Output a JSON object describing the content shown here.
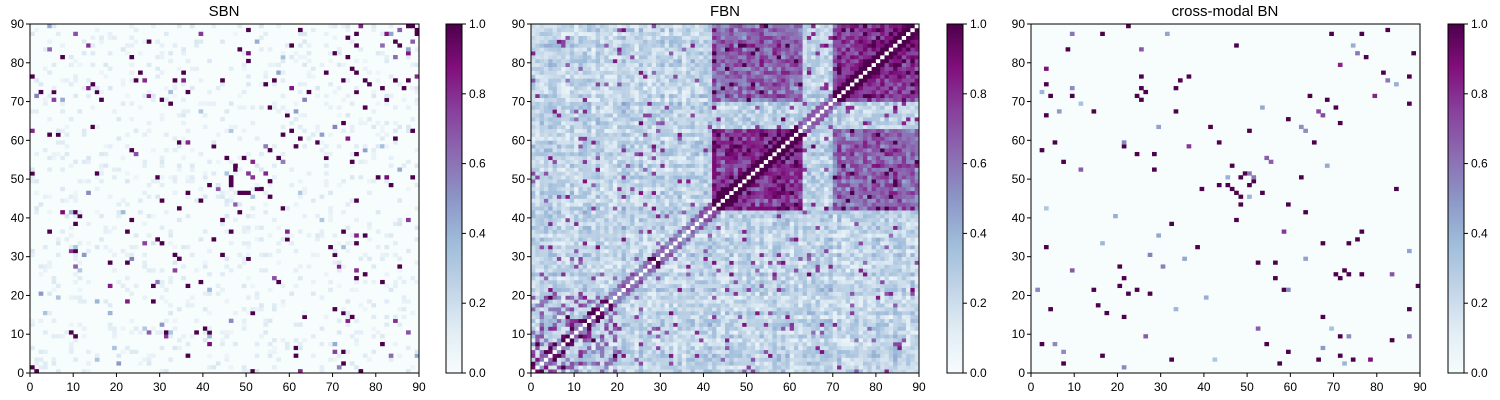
{
  "chart_data": [
    {
      "type": "heatmap",
      "title": "SBN",
      "xlabel": "",
      "ylabel": "",
      "xlim": [
        0,
        90
      ],
      "ylim": [
        0,
        90
      ],
      "x_ticks": [
        "0",
        "10",
        "20",
        "30",
        "40",
        "50",
        "60",
        "70",
        "80",
        "90"
      ],
      "y_ticks": [
        "0",
        "10",
        "20",
        "30",
        "40",
        "50",
        "60",
        "70",
        "80",
        "90"
      ],
      "colorbar": {
        "range": [
          0.0,
          1.0
        ],
        "ticks": [
          "0.0",
          "0.2",
          "0.4",
          "0.6",
          "0.8",
          "1.0"
        ]
      },
      "colormap": "BuPu",
      "pattern": "sparse symmetric structural connectivity; dense clusters near (72,72), (45,45), (5,5), (80,80)"
    },
    {
      "type": "heatmap",
      "title": "FBN",
      "xlabel": "",
      "ylabel": "",
      "xlim": [
        0,
        90
      ],
      "ylim": [
        0,
        90
      ],
      "x_ticks": [
        "0",
        "10",
        "20",
        "30",
        "40",
        "50",
        "60",
        "70",
        "80",
        "90"
      ],
      "y_ticks": [
        "0",
        "10",
        "20",
        "30",
        "40",
        "50",
        "60",
        "70",
        "80",
        "90"
      ],
      "colorbar": {
        "range": [
          0.0,
          1.0
        ],
        "ticks": [
          "0.0",
          "0.2",
          "0.4",
          "0.6",
          "0.8",
          "1.0"
        ]
      },
      "colormap": "BuPu",
      "pattern": "dense symmetric functional connectivity; strong blocks around 42-62 and 70-90; white diagonal"
    },
    {
      "type": "heatmap",
      "title": "cross-modal BN",
      "xlabel": "",
      "ylabel": "",
      "xlim": [
        0,
        90
      ],
      "ylim": [
        0,
        90
      ],
      "x_ticks": [
        "0",
        "10",
        "20",
        "30",
        "40",
        "50",
        "60",
        "70",
        "80",
        "90"
      ],
      "y_ticks": [
        "0",
        "10",
        "20",
        "30",
        "40",
        "50",
        "60",
        "70",
        "80",
        "90"
      ],
      "colorbar": {
        "range": [
          0.0,
          1.0
        ],
        "ticks": [
          "0.0",
          "0.2",
          "0.4",
          "0.6",
          "0.8",
          "1.0"
        ]
      },
      "colormap": "BuPu",
      "pattern": "very sparse symmetric cross-modal connectivity"
    }
  ],
  "colors": {
    "colormap_stops": [
      "#f7fcfd",
      "#e0ecf4",
      "#bfd3e6",
      "#9ebcda",
      "#8c96c6",
      "#8c6bb1",
      "#88419d",
      "#810f7c",
      "#4d004b"
    ]
  }
}
